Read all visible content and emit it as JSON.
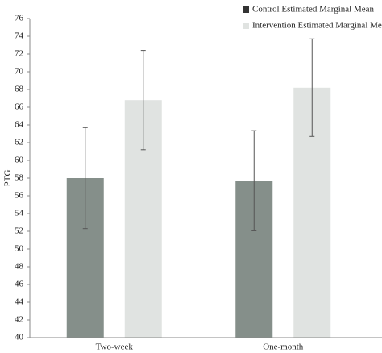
{
  "chart_data": {
    "type": "bar",
    "y_label": "PTG",
    "categories": [
      "Two-week",
      "One-month"
    ],
    "series": [
      {
        "name": "Control Estimated Marginal Mean",
        "color": "#858f8a",
        "values": [
          58.0,
          57.7
        ],
        "errors": [
          5.7,
          5.65
        ]
      },
      {
        "name": "Intervention Estimated Marginal Mean",
        "color": "#e0e3e1",
        "values": [
          66.8,
          68.2
        ],
        "errors": [
          5.6,
          5.5
        ]
      }
    ],
    "ylim": [
      40,
      76
    ],
    "yticks": [
      40,
      42,
      44,
      46,
      48,
      50,
      52,
      54,
      56,
      58,
      60,
      62,
      64,
      66,
      68,
      70,
      72,
      74,
      76
    ],
    "grid": false,
    "legend": "top-right"
  }
}
